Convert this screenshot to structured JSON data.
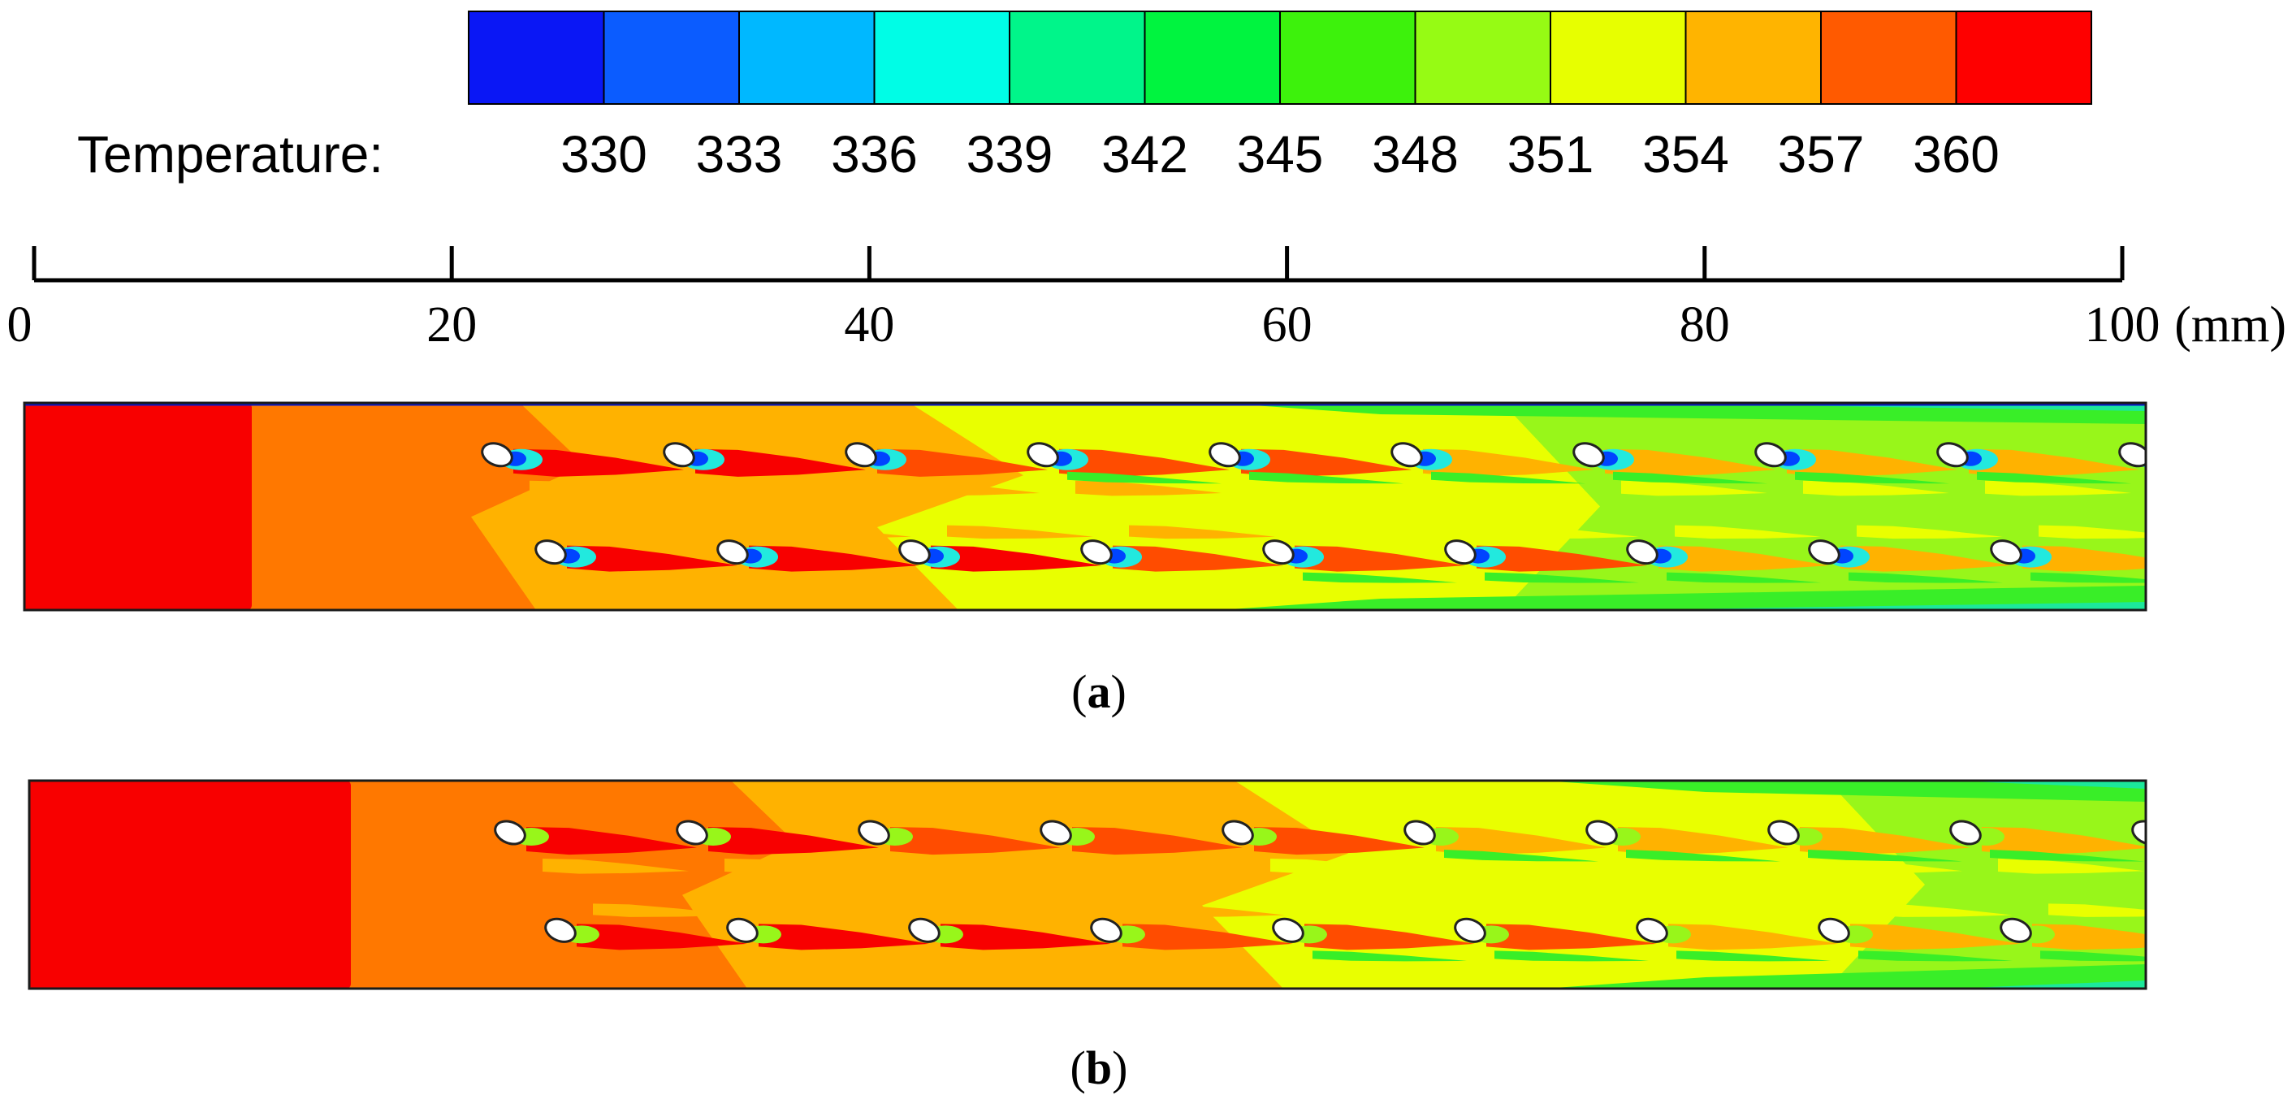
{
  "legend": {
    "label": "Temperature:",
    "values": [
      "330",
      "333",
      "336",
      "339",
      "342",
      "345",
      "348",
      "351",
      "354",
      "357",
      "360"
    ],
    "colors": [
      "#0a17f5",
      "#0b5cff",
      "#00b8ff",
      "#00fde6",
      "#00f58a",
      "#00f43f",
      "#3df20c",
      "#96fb14",
      "#e7ff00",
      "#ffb400",
      "#ff5a00",
      "#fe0000"
    ]
  },
  "scale_bar": {
    "ticks": [
      "0",
      "20",
      "40",
      "60",
      "80",
      "100"
    ],
    "unit": "(mm)"
  },
  "panels": [
    {
      "id": "a",
      "caption_open": "(",
      "caption_letter": "a",
      "caption_close": ")"
    },
    {
      "id": "b",
      "caption_open": "(",
      "caption_letter": "b",
      "caption_close": ")"
    }
  ],
  "colors": {
    "red": "#f80000",
    "red_orange": "#ff4c00",
    "orange": "#ff7800",
    "amber": "#ffb200",
    "yellow": "#e9ff00",
    "lime": "#98f61a",
    "green": "#39ee28",
    "mint": "#1ce89b",
    "cyan": "#22e9de",
    "blue": "#0044ff",
    "navy": "#0a17c8"
  }
}
